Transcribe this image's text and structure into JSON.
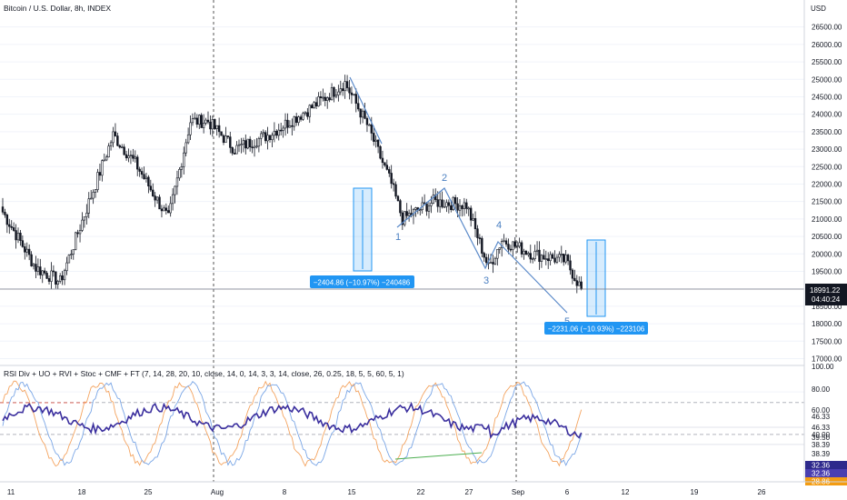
{
  "header": {
    "symbol_title": "Bitcoin / U.S. Dollar, 8h, INDEX"
  },
  "price_axis": {
    "currency": "USD",
    "last_price": "18991.22",
    "countdown": "04:40:24"
  },
  "indicator": {
    "title": "RSI Div + UO + RVI + Stoc + CMF + FT (7, 14, 28, 20, 10, close, 14, 0, 14, 3, 3, 14, close, 26, 0.25, 18, 5, 5, 60, 5, 1)",
    "axis_ticks": [
      "100.00",
      "80.00",
      "60.00"
    ],
    "value_labels": [
      "46.33",
      "46.33",
      "40.00",
      "39.50",
      "38.39",
      "38.39"
    ],
    "badges": [
      {
        "text": "32.36",
        "color": "#2e2a8c"
      },
      {
        "text": "32.36",
        "color": "#4a3fb0"
      },
      {
        "text": "28.86",
        "color": "#f39c12"
      }
    ]
  },
  "measurements": [
    {
      "label": "−2404.86 (−10.97%) −240486"
    },
    {
      "label": "−2231.06 (−10.93%) −223106"
    }
  ],
  "wave_labels": [
    "1",
    "2",
    "3",
    "4",
    "5"
  ],
  "chart_data": {
    "type": "candlestick",
    "title": "Bitcoin / U.S. Dollar, 8h, INDEX",
    "y_unit": "USD",
    "ylim": [
      16750,
      26900
    ],
    "yticks": [
      17000,
      17500,
      18000,
      18500,
      19000,
      19500,
      20000,
      20500,
      21000,
      21500,
      22000,
      22500,
      23000,
      23500,
      24000,
      24500,
      25000,
      25500,
      26000,
      26500
    ],
    "x_ticks": [
      "11",
      "18",
      "25",
      "Aug",
      "8",
      "15",
      "22",
      "27",
      "Sep",
      "6",
      "12",
      "19",
      "26"
    ],
    "last_price": 18991.22,
    "approx_path": [
      {
        "bar": 0,
        "price": 21200
      },
      {
        "bar": 15,
        "price": 19600
      },
      {
        "bar": 26,
        "price": 19200
      },
      {
        "bar": 38,
        "price": 21300
      },
      {
        "bar": 50,
        "price": 23400
      },
      {
        "bar": 60,
        "price": 22600
      },
      {
        "bar": 75,
        "price": 21000
      },
      {
        "bar": 85,
        "price": 23800
      },
      {
        "bar": 93,
        "price": 23800
      },
      {
        "bar": 105,
        "price": 23000
      },
      {
        "bar": 120,
        "price": 23400
      },
      {
        "bar": 140,
        "price": 24200
      },
      {
        "bar": 155,
        "price": 24900
      },
      {
        "bar": 165,
        "price": 23700
      },
      {
        "bar": 176,
        "price": 22000
      },
      {
        "bar": 181,
        "price": 21000
      },
      {
        "bar": 195,
        "price": 21500
      },
      {
        "bar": 210,
        "price": 21400
      },
      {
        "bar": 220,
        "price": 19600
      },
      {
        "bar": 226,
        "price": 20400
      },
      {
        "bar": 240,
        "price": 20000
      },
      {
        "bar": 255,
        "price": 19800
      },
      {
        "bar": 262,
        "price": 19000
      }
    ]
  }
}
